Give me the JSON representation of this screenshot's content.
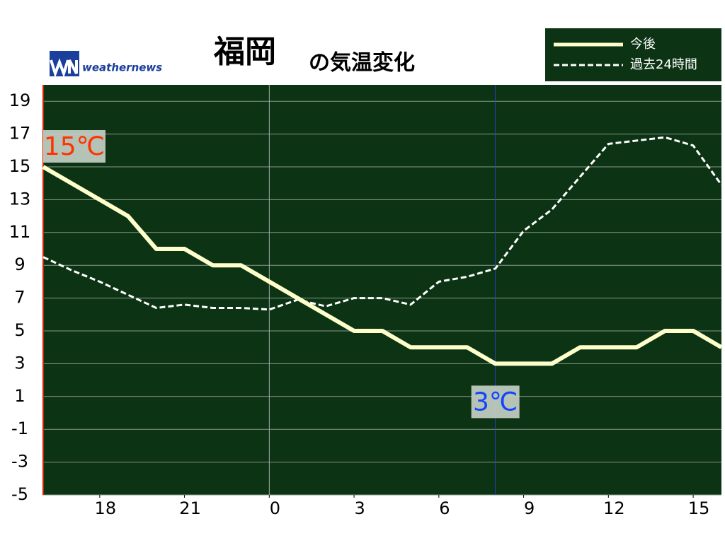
{
  "chart_data": {
    "type": "line",
    "title": "福岡",
    "subtitle": "の気温変化",
    "logo": "weathernews",
    "x": [
      16,
      17,
      18,
      19,
      20,
      21,
      22,
      23,
      24,
      25,
      26,
      27,
      28,
      29,
      30,
      31,
      32,
      33,
      34,
      35,
      36,
      37,
      38,
      39,
      40
    ],
    "series": [
      {
        "name": "今後",
        "color": "#ffffcc",
        "style": "solid",
        "values": [
          15,
          14,
          13,
          12,
          10,
          10,
          9,
          9,
          8,
          7,
          6,
          5,
          5,
          4,
          4,
          4,
          3,
          3,
          3,
          4,
          4,
          4,
          5,
          5,
          4
        ]
      },
      {
        "name": "過去24時間",
        "color": "#ffffff",
        "style": "dashed",
        "values": [
          9.5,
          8.7,
          8.0,
          7.2,
          6.4,
          6.6,
          6.4,
          6.4,
          6.3,
          6.9,
          6.5,
          7.0,
          7.0,
          6.6,
          8.0,
          8.3,
          8.8,
          11.1,
          12.4,
          14.4,
          16.4,
          16.6,
          16.8,
          16.3,
          13.9
        ]
      }
    ],
    "xlim": [
      16,
      40
    ],
    "xticks": [
      18,
      21,
      {
        "value": 24,
        "label": "0"
      },
      {
        "value": 27,
        "label": "3"
      },
      {
        "value": 30,
        "label": "6"
      },
      {
        "value": 33,
        "label": "9"
      },
      {
        "value": 36,
        "label": "12"
      },
      {
        "value": 39,
        "label": "15"
      }
    ],
    "ylim": [
      -5,
      20
    ],
    "yticks": [
      -5,
      -3,
      -1,
      1,
      3,
      5,
      7,
      9,
      11,
      13,
      15,
      17,
      19
    ],
    "grid": true,
    "markers": [
      {
        "x": 24,
        "color": "#aaaaaa"
      },
      {
        "x": 32,
        "color": "#2244cc"
      }
    ],
    "annotations": [
      {
        "text": "15℃",
        "x": 16,
        "y": 15,
        "color": "#ff3300"
      },
      {
        "text": "3℃",
        "x": 32,
        "y": 3,
        "color": "#1144ff"
      }
    ],
    "background": "#0b3314",
    "legend": "top-right"
  }
}
